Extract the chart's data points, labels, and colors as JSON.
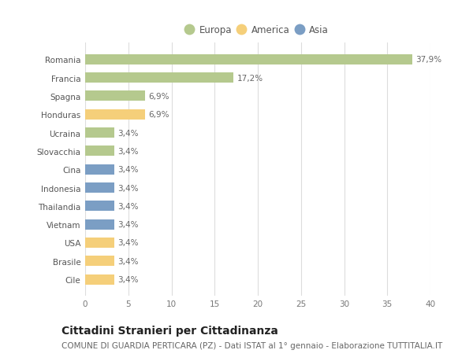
{
  "categories": [
    "Cile",
    "Brasile",
    "USA",
    "Vietnam",
    "Thailandia",
    "Indonesia",
    "Cina",
    "Slovacchia",
    "Ucraina",
    "Honduras",
    "Spagna",
    "Francia",
    "Romania"
  ],
  "values": [
    3.4,
    3.4,
    3.4,
    3.4,
    3.4,
    3.4,
    3.4,
    3.4,
    3.4,
    6.9,
    6.9,
    17.2,
    37.9
  ],
  "continents": [
    "America",
    "America",
    "America",
    "Asia",
    "Asia",
    "Asia",
    "Asia",
    "Europa",
    "Europa",
    "America",
    "Europa",
    "Europa",
    "Europa"
  ],
  "labels": [
    "3,4%",
    "3,4%",
    "3,4%",
    "3,4%",
    "3,4%",
    "3,4%",
    "3,4%",
    "3,4%",
    "3,4%",
    "6,9%",
    "6,9%",
    "17,2%",
    "37,9%"
  ],
  "colors": {
    "Europa": "#b5c98e",
    "America": "#f5cf7a",
    "Asia": "#7b9ec4"
  },
  "legend_entries": [
    "Europa",
    "America",
    "Asia"
  ],
  "legend_colors": [
    "#b5c98e",
    "#f5cf7a",
    "#7b9ec4"
  ],
  "title": "Cittadini Stranieri per Cittadinanza",
  "subtitle": "COMUNE DI GUARDIA PERTICARA (PZ) - Dati ISTAT al 1° gennaio - Elaborazione TUTTITALIA.IT",
  "xlim": [
    0,
    40
  ],
  "xticks": [
    0,
    5,
    10,
    15,
    20,
    25,
    30,
    35,
    40
  ],
  "background_color": "#ffffff",
  "plot_bg_color": "#ffffff",
  "grid_color": "#dddddd",
  "bar_height": 0.55,
  "label_fontsize": 7.5,
  "title_fontsize": 10,
  "subtitle_fontsize": 7.5,
  "tick_fontsize": 7.5,
  "legend_fontsize": 8.5
}
